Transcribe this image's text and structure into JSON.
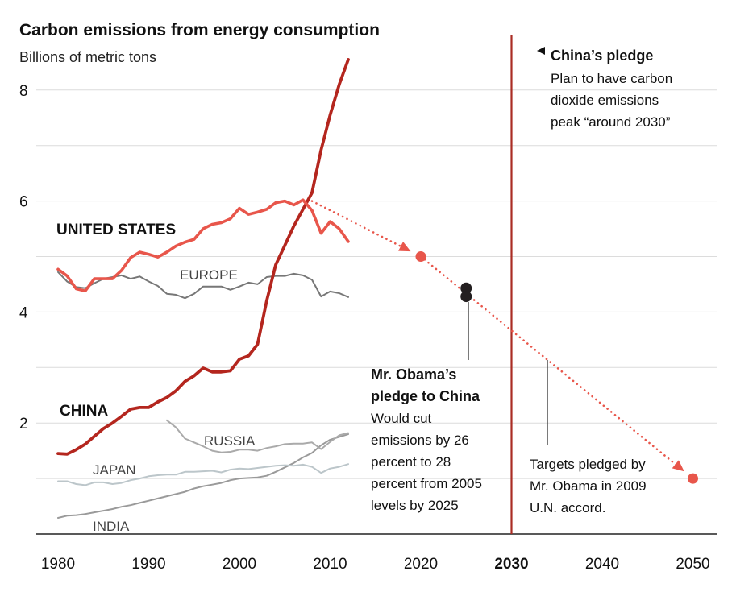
{
  "chart_data": {
    "type": "line",
    "title": "Carbon emissions from energy consumption",
    "ylabel": "Billions of metric tons",
    "xlim": [
      1977,
      2052
    ],
    "ylim": [
      0,
      8.9
    ],
    "yticks": [
      2,
      4,
      6,
      8
    ],
    "xticks": [
      {
        "value": 1980,
        "label": "1980",
        "bold": false
      },
      {
        "value": 1990,
        "label": "1990",
        "bold": false
      },
      {
        "value": 2000,
        "label": "2000",
        "bold": false
      },
      {
        "value": 2010,
        "label": "2010",
        "bold": false
      },
      {
        "value": 2020,
        "label": "2020",
        "bold": false
      },
      {
        "value": 2030,
        "label": "2030",
        "bold": true
      },
      {
        "value": 2040,
        "label": "2040",
        "bold": false
      },
      {
        "value": 2050,
        "label": "2050",
        "bold": false
      }
    ],
    "grid": true,
    "series": [
      {
        "name": "UNITED STATES",
        "color": "#e8564b",
        "x": [
          1980,
          1981,
          1982,
          1983,
          1984,
          1985,
          1986,
          1987,
          1988,
          1989,
          1990,
          1991,
          1992,
          1993,
          1994,
          1995,
          1996,
          1997,
          1998,
          1999,
          2000,
          2001,
          2002,
          2003,
          2004,
          2005,
          2006,
          2007,
          2008,
          2009,
          2010,
          2011,
          2012
        ],
        "y": [
          4.77,
          4.65,
          4.42,
          4.38,
          4.6,
          4.6,
          4.6,
          4.75,
          4.98,
          5.08,
          5.04,
          4.99,
          5.08,
          5.19,
          5.26,
          5.31,
          5.5,
          5.58,
          5.61,
          5.68,
          5.87,
          5.76,
          5.8,
          5.85,
          5.97,
          6.0,
          5.93,
          6.02,
          5.83,
          5.42,
          5.63,
          5.5,
          5.27
        ]
      },
      {
        "name": "EUROPE",
        "color": "#777777",
        "x": [
          1980,
          1981,
          1982,
          1983,
          1984,
          1985,
          1986,
          1987,
          1988,
          1989,
          1990,
          1991,
          1992,
          1993,
          1994,
          1995,
          1996,
          1997,
          1998,
          1999,
          2000,
          2001,
          2002,
          2003,
          2004,
          2005,
          2006,
          2007,
          2008,
          2009,
          2010,
          2011,
          2012
        ],
        "y": [
          4.72,
          4.55,
          4.45,
          4.43,
          4.52,
          4.6,
          4.63,
          4.66,
          4.6,
          4.64,
          4.55,
          4.47,
          4.33,
          4.31,
          4.25,
          4.33,
          4.46,
          4.46,
          4.46,
          4.4,
          4.46,
          4.53,
          4.5,
          4.63,
          4.65,
          4.65,
          4.69,
          4.66,
          4.58,
          4.28,
          4.37,
          4.34,
          4.27
        ]
      },
      {
        "name": "CHINA",
        "color": "#b4261e",
        "x": [
          1980,
          1981,
          1982,
          1983,
          1984,
          1985,
          1986,
          1987,
          1988,
          1989,
          1990,
          1991,
          1992,
          1993,
          1994,
          1995,
          1996,
          1997,
          1998,
          1999,
          2000,
          2001,
          2002,
          2003,
          2004,
          2005,
          2006,
          2007,
          2008,
          2009,
          2010,
          2011,
          2012
        ],
        "y": [
          1.45,
          1.44,
          1.52,
          1.62,
          1.76,
          1.9,
          2.0,
          2.12,
          2.25,
          2.28,
          2.28,
          2.38,
          2.46,
          2.58,
          2.75,
          2.85,
          2.99,
          2.92,
          2.92,
          2.94,
          3.15,
          3.21,
          3.42,
          4.2,
          4.85,
          5.2,
          5.55,
          5.85,
          6.15,
          6.92,
          7.55,
          8.1,
          8.55
        ]
      },
      {
        "name": "RUSSIA",
        "color": "#aaaaaa",
        "x": [
          1992,
          1993,
          1994,
          1995,
          1996,
          1997,
          1998,
          1999,
          2000,
          2001,
          2002,
          2003,
          2004,
          2005,
          2006,
          2007,
          2008,
          2009,
          2010,
          2011,
          2012
        ],
        "y": [
          2.05,
          1.92,
          1.72,
          1.65,
          1.58,
          1.5,
          1.47,
          1.48,
          1.52,
          1.52,
          1.5,
          1.55,
          1.58,
          1.62,
          1.63,
          1.63,
          1.65,
          1.53,
          1.66,
          1.78,
          1.82
        ]
      },
      {
        "name": "JAPAN",
        "color": "#bcc6ca",
        "x": [
          1980,
          1981,
          1982,
          1983,
          1984,
          1985,
          1986,
          1987,
          1988,
          1989,
          1990,
          1991,
          1992,
          1993,
          1994,
          1995,
          1996,
          1997,
          1998,
          1999,
          2000,
          2001,
          2002,
          2003,
          2004,
          2005,
          2006,
          2007,
          2008,
          2009,
          2010,
          2011,
          2012
        ],
        "y": [
          0.95,
          0.95,
          0.9,
          0.88,
          0.93,
          0.93,
          0.9,
          0.92,
          0.97,
          1.0,
          1.04,
          1.06,
          1.07,
          1.07,
          1.12,
          1.12,
          1.13,
          1.14,
          1.11,
          1.16,
          1.18,
          1.17,
          1.19,
          1.21,
          1.23,
          1.24,
          1.23,
          1.25,
          1.21,
          1.1,
          1.18,
          1.21,
          1.26
        ]
      },
      {
        "name": "INDIA",
        "color": "#9a9a9a",
        "x": [
          1980,
          1981,
          1982,
          1983,
          1984,
          1985,
          1986,
          1987,
          1988,
          1989,
          1990,
          1991,
          1992,
          1993,
          1994,
          1995,
          1996,
          1997,
          1998,
          1999,
          2000,
          2001,
          2002,
          2003,
          2004,
          2005,
          2006,
          2007,
          2008,
          2009,
          2010,
          2011,
          2012
        ],
        "y": [
          0.29,
          0.33,
          0.34,
          0.36,
          0.39,
          0.42,
          0.45,
          0.49,
          0.52,
          0.56,
          0.6,
          0.64,
          0.68,
          0.72,
          0.76,
          0.82,
          0.86,
          0.89,
          0.92,
          0.97,
          1.0,
          1.01,
          1.02,
          1.05,
          1.12,
          1.2,
          1.28,
          1.38,
          1.46,
          1.6,
          1.7,
          1.75,
          1.8
        ]
      }
    ],
    "projections": [
      {
        "name": "Targets pledged by Mr. Obama in 2009 U.N. accord.",
        "color": "#e8564b",
        "x": [
          2008,
          2020,
          2050
        ],
        "y": [
          6.0,
          5.0,
          1.0
        ]
      }
    ],
    "pledge_points": [
      {
        "x": 2025,
        "y": 4.43,
        "color": "#231f20"
      },
      {
        "x": 2025,
        "y": 4.28,
        "color": "#231f20"
      }
    ],
    "reference_line": {
      "x": 2030,
      "color": "#aa2d24"
    },
    "labels": {
      "us": "UNITED STATES",
      "europe": "EUROPE",
      "china": "CHINA",
      "russia": "RUSSIA",
      "japan": "JAPAN",
      "india": "INDIA"
    },
    "annotations": {
      "china_pledge": {
        "title": "China’s pledge",
        "lines": [
          "Plan to have carbon",
          "dioxide emissions",
          "peak “around 2030”"
        ]
      },
      "obama_pledge": {
        "title_lines": [
          "Mr. Obama’s",
          "pledge to China"
        ],
        "lines": [
          "Would cut",
          "emissions by 26",
          "percent to 28",
          "percent from 2005",
          "levels by 2025"
        ]
      },
      "targets": {
        "lines": [
          "Targets pledged by",
          "Mr. Obama in 2009",
          "U.N. accord."
        ]
      }
    }
  }
}
